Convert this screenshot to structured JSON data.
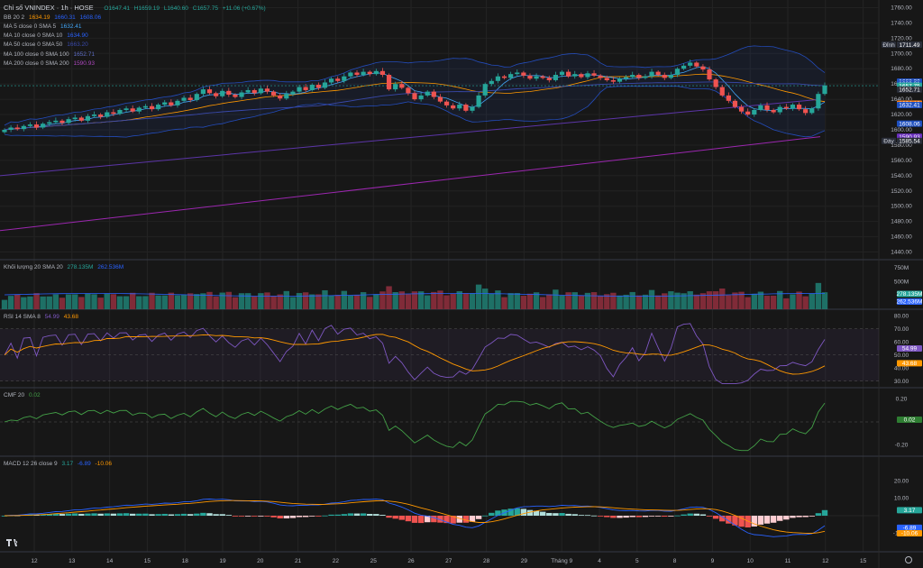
{
  "header": {
    "symbol": "Chỉ số VNINDEX · 1h · HOSE",
    "ohlc": {
      "open": "O1647.41",
      "high": "H1659.19",
      "low": "L1640.60",
      "close": "C1657.75",
      "change": "+11.06 (+0.67%)"
    }
  },
  "indicators": {
    "bb": {
      "label": "BB 20 2",
      "v1": "1634.19",
      "v2": "1660.31",
      "v3": "1608.06"
    },
    "ma5": {
      "label": "MA 5 close 0 SMA 5",
      "value": "1632.41"
    },
    "ma10": {
      "label": "MA 10 close 0 SMA 10",
      "value": "1634.90"
    },
    "ma50": {
      "label": "MA 50 close 0 SMA 50",
      "value": "1663.20"
    },
    "ma100": {
      "label": "MA 100 close 0 SMA 100",
      "value": "1652.71"
    },
    "ma200": {
      "label": "MA 200 close 0 SMA 200",
      "value": "1590.93"
    }
  },
  "volume_legend": {
    "label": "Khối lượng 20 SMA 20",
    "v1": "278.135M",
    "v2": "262.536M"
  },
  "rsi_legend": {
    "label": "RSI 14 SMA 8",
    "v1": "54.99",
    "v2": "43.68"
  },
  "cmf_legend": {
    "label": "CMF 20",
    "v1": "0.02"
  },
  "macd_legend": {
    "label": "MACD 12 26 close 9",
    "v1": "3.17",
    "v2": "-6.89",
    "v3": "-10.06"
  },
  "price_axis": {
    "ticks": [
      "1760.00",
      "1740.00",
      "1720.00",
      "1700.00",
      "1680.00",
      "1660.00",
      "1640.00",
      "1620.00",
      "1600.00",
      "1580.00",
      "1560.00",
      "1540.00",
      "1520.00",
      "1500.00",
      "1480.00",
      "1460.00",
      "1440.00"
    ],
    "tick_values": [
      1760,
      1740,
      1720,
      1700,
      1680,
      1660,
      1640,
      1620,
      1600,
      1580,
      1560,
      1540,
      1520,
      1500,
      1480,
      1460,
      1440
    ],
    "badges": [
      {
        "text": "1711.49",
        "value": 1711.49,
        "color": "#2a2e39",
        "tag": "Đỉnh"
      },
      {
        "text": "1663.20",
        "value": 1663.2,
        "color": "#1e4fbf"
      },
      {
        "text": "1660.31",
        "value": 1660.31,
        "color": "#1e4fbf"
      },
      {
        "text": "1657.75",
        "value": 1657.75,
        "color": "#26a69a"
      },
      {
        "text": "1652.71",
        "value": 1652.71,
        "color": "#2a2e39"
      },
      {
        "text": "1634.90",
        "value": 1634.9,
        "color": "#2a2e39"
      },
      {
        "text": "1634.19",
        "value": 1634.19,
        "color": "#ff7f0e"
      },
      {
        "text": "1632.41",
        "value": 1632.41,
        "color": "#1e4fbf"
      },
      {
        "text": "1608.06",
        "value": 1608.06,
        "color": "#1e4fbf"
      },
      {
        "text": "1590.93",
        "value": 1590.93,
        "color": "#6b2fbf"
      },
      {
        "text": "1585.54",
        "value": 1585.54,
        "color": "#2a2e39",
        "tag": "Đáy"
      }
    ]
  },
  "volume_axis": {
    "ticks": [
      "750M",
      "500M"
    ],
    "tick_values": [
      750,
      500
    ]
  },
  "rsi_axis": {
    "ticks": [
      "80.00",
      "70.00",
      "60.00",
      "50.00",
      "40.00",
      "30.00"
    ],
    "tick_values": [
      80,
      70,
      60,
      50,
      40,
      30
    ]
  },
  "cmf_axis": {
    "ticks": [
      "0.20",
      "-0.20"
    ],
    "tick_values": [
      0.2,
      -0.2
    ]
  },
  "macd_axis": {
    "ticks": [
      "20.00",
      "10.00",
      "-10.00"
    ],
    "tick_values": [
      20,
      10,
      -10
    ]
  },
  "time_axis": {
    "labels": [
      "12",
      "13",
      "14",
      "15",
      "18",
      "19",
      "20",
      "21",
      "22",
      "25",
      "26",
      "27",
      "28",
      "29",
      "Tháng 9",
      "4",
      "5",
      "8",
      "9",
      "10",
      "11",
      "12",
      "15"
    ]
  },
  "colors": {
    "up": "#26a69a",
    "down": "#ef5350",
    "bb": "#2962ff",
    "ma5": "#42a5f5",
    "ma50": "#5b2ea6",
    "ma200": "#9c27b0",
    "sma": "#ff9800",
    "rsi": "#7e57c2",
    "cmf": "#43a047"
  },
  "chart_data": {
    "type": "candlestick",
    "closes": [
      1600,
      1603,
      1601,
      1605,
      1607,
      1603,
      1608,
      1610,
      1612,
      1609,
      1614,
      1616,
      1612,
      1618,
      1620,
      1617,
      1623,
      1621,
      1626,
      1628,
      1624,
      1629,
      1631,
      1627,
      1633,
      1636,
      1632,
      1638,
      1642,
      1639,
      1647,
      1653,
      1648,
      1644,
      1651,
      1646,
      1643,
      1649,
      1652,
      1648,
      1654,
      1650,
      1645,
      1641,
      1647,
      1650,
      1656,
      1652,
      1659,
      1655,
      1662,
      1667,
      1664,
      1670,
      1675,
      1672,
      1676,
      1673,
      1677,
      1672,
      1653,
      1660,
      1655,
      1648,
      1640,
      1645,
      1650,
      1643,
      1637,
      1632,
      1628,
      1633,
      1625,
      1630,
      1645,
      1660,
      1664,
      1670,
      1668,
      1673,
      1675,
      1671,
      1667,
      1670,
      1668,
      1665,
      1672,
      1676,
      1670,
      1673,
      1669,
      1674,
      1671,
      1668,
      1665,
      1663,
      1667,
      1669,
      1672,
      1668,
      1670,
      1676,
      1672,
      1668,
      1672,
      1680,
      1684,
      1688,
      1683,
      1679,
      1666,
      1656,
      1645,
      1638,
      1630,
      1624,
      1620,
      1626,
      1632,
      1626,
      1623,
      1630,
      1628,
      1633,
      1627,
      1622,
      1628,
      1647,
      1658
    ],
    "rsi_last": 54.99,
    "rsi_sma_last": 43.68,
    "cmf_last": 0.02,
    "macd_last": 3.17,
    "macd_signal_last": -6.89,
    "macd_hist_last": -10.06
  }
}
